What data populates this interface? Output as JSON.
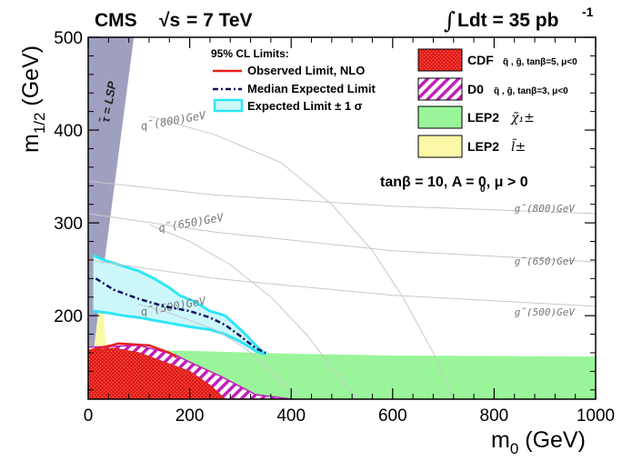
{
  "chart_data": {
    "type": "area",
    "header": {
      "experiment": "CMS",
      "energy_prefix": "√s",
      "energy_value": "= 7 TeV",
      "lumi_integral": "∫",
      "lumi_text": "Ldt = 35 pb",
      "lumi_exp": "-1"
    },
    "xlabel_main": "m",
    "xlabel_sub": "0",
    "xlabel_unit": " (GeV)",
    "ylabel_main": "m",
    "ylabel_sub": "1/2",
    "ylabel_unit": " (GeV)",
    "xlim": [
      0,
      1000
    ],
    "ylim": [
      110,
      500
    ],
    "xticks": [
      "0",
      "200",
      "400",
      "600",
      "800",
      "1000"
    ],
    "yticks": [
      "200",
      "300",
      "400",
      "500"
    ],
    "xtick_values": [
      0,
      200,
      400,
      600,
      800,
      1000
    ],
    "ytick_values": [
      200,
      300,
      400,
      500
    ],
    "params_text": "tanβ = 10, A  = 0, μ > 0",
    "params_a0_sub": "0",
    "tau_lsp_text": "τ̃ = LSP",
    "legend_left": {
      "title": "95% CL  Limits:",
      "entries": [
        {
          "label": "Observed Limit, NLO",
          "color": "#e8201c"
        },
        {
          "label": "Median Expected Limit",
          "color": "#101060"
        },
        {
          "label": "Expected Limit ± 1 σ",
          "color": "#2ee6f5",
          "fill": "#cdf8fb"
        }
      ]
    },
    "legend_right": {
      "entries": [
        {
          "label": "CDF",
          "detail": "q̃ , g̃, tanβ=5, μ<0",
          "color": "#e0201c"
        },
        {
          "label": "D0",
          "detail": "q̃ , g̃, tanβ=3, μ<0",
          "color": "#c21fb8"
        },
        {
          "label": "LEP2",
          "detail": "χ̃₁±",
          "color": "#9af59a"
        },
        {
          "label": "LEP2",
          "detail": "l̃±",
          "color": "#fbf9a8"
        }
      ]
    },
    "contour_labels": {
      "squark": [
        "q̃(500)GeV",
        "q̃(650)GeV",
        "q̃(800)GeV"
      ],
      "gluino": [
        "g̃(500)GeV",
        "g̃(650)GeV",
        "g̃(800)GeV"
      ]
    },
    "colors": {
      "tau_lsp": "#9fa0c0",
      "lep2_chargino": "#9af59a",
      "lep2_slepton": "#fbf9a8",
      "cdf": "#e0201c",
      "d0": "#c21fb8",
      "band_fill": "#cdf8fb",
      "band_edge": "#2ee6f5",
      "observed": "#e8201c",
      "expected": "#101060",
      "contour": "#c8c8c8"
    },
    "regions": {
      "tau_lsp": [
        [
          0,
          110
        ],
        [
          0,
          500
        ],
        [
          90,
          500
        ],
        [
          23,
          220
        ],
        [
          0,
          110
        ]
      ],
      "lep2_slepton": [
        [
          0,
          110
        ],
        [
          0,
          230
        ],
        [
          10,
          238
        ],
        [
          22,
          222
        ],
        [
          30,
          200
        ],
        [
          35,
          170
        ],
        [
          42,
          130
        ],
        [
          50,
          110
        ]
      ],
      "lep2_chargino": [
        [
          0,
          110
        ],
        [
          0,
          160
        ],
        [
          60,
          163
        ],
        [
          200,
          162
        ],
        [
          400,
          159
        ],
        [
          600,
          157
        ],
        [
          1000,
          156
        ],
        [
          1000,
          110
        ]
      ],
      "cdf": [
        [
          0,
          110
        ],
        [
          0,
          162
        ],
        [
          50,
          165
        ],
        [
          100,
          160
        ],
        [
          150,
          150
        ],
        [
          200,
          140
        ],
        [
          240,
          125
        ],
        [
          270,
          110
        ]
      ],
      "d0": [
        [
          0,
          110
        ],
        [
          0,
          166
        ],
        [
          100,
          168
        ],
        [
          170,
          158
        ],
        [
          200,
          150
        ],
        [
          260,
          135
        ],
        [
          330,
          115
        ],
        [
          400,
          110
        ]
      ],
      "band_upper": [
        [
          10,
          265
        ],
        [
          30,
          260
        ],
        [
          60,
          255
        ],
        [
          100,
          248
        ],
        [
          130,
          240
        ],
        [
          160,
          230
        ],
        [
          180,
          222
        ],
        [
          210,
          215
        ],
        [
          240,
          205
        ],
        [
          270,
          200
        ],
        [
          290,
          190
        ],
        [
          310,
          180
        ],
        [
          330,
          168
        ],
        [
          350,
          158
        ]
      ],
      "band_lower": [
        [
          350,
          158
        ],
        [
          330,
          162
        ],
        [
          300,
          172
        ],
        [
          270,
          180
        ],
        [
          240,
          185
        ],
        [
          200,
          188
        ],
        [
          160,
          192
        ],
        [
          130,
          195
        ],
        [
          100,
          198
        ],
        [
          70,
          200
        ],
        [
          40,
          203
        ],
        [
          10,
          205
        ]
      ],
      "observed": [
        [
          0,
          162
        ],
        [
          60,
          170
        ],
        [
          120,
          168
        ],
        [
          160,
          160
        ],
        [
          175,
          155
        ]
      ],
      "expected": [
        [
          15,
          240
        ],
        [
          50,
          228
        ],
        [
          100,
          218
        ],
        [
          150,
          210
        ],
        [
          200,
          205
        ],
        [
          240,
          198
        ],
        [
          270,
          190
        ],
        [
          300,
          178
        ],
        [
          330,
          165
        ],
        [
          350,
          160
        ]
      ],
      "squark_contours": [
        {
          "label_at": [
            105,
            200
          ],
          "points": [
            [
              100,
              212
            ],
            [
              150,
              205
            ],
            [
              200,
              195
            ],
            [
              250,
              185
            ],
            [
              280,
              175
            ],
            [
              310,
              165
            ],
            [
              340,
              150
            ],
            [
              380,
              130
            ],
            [
              420,
              110
            ]
          ]
        },
        {
          "label_at": [
            140,
            290
          ],
          "points": [
            [
              120,
              298
            ],
            [
              200,
              280
            ],
            [
              280,
              255
            ],
            [
              360,
              220
            ],
            [
              430,
              180
            ],
            [
              500,
              130
            ],
            [
              530,
              110
            ]
          ]
        },
        {
          "label_at": [
            105,
            400
          ],
          "points": [
            [
              120,
              415
            ],
            [
              250,
              395
            ],
            [
              380,
              365
            ],
            [
              480,
              320
            ],
            [
              560,
              270
            ],
            [
              620,
              220
            ],
            [
              680,
              160
            ],
            [
              720,
              110
            ]
          ]
        }
      ],
      "gluino_contours": [
        {
          "label_at": [
            840,
            200
          ],
          "points": [
            [
              0,
              260
            ],
            [
              250,
              240
            ],
            [
              600,
              222
            ],
            [
              1000,
              210
            ]
          ]
        },
        {
          "label_at": [
            840,
            255
          ],
          "points": [
            [
              0,
              310
            ],
            [
              250,
              290
            ],
            [
              600,
              270
            ],
            [
              1000,
              258
            ]
          ]
        },
        {
          "label_at": [
            840,
            312
          ],
          "points": [
            [
              0,
              345
            ],
            [
              250,
              330
            ],
            [
              600,
              318
            ],
            [
              1000,
              310
            ]
          ]
        }
      ]
    }
  }
}
